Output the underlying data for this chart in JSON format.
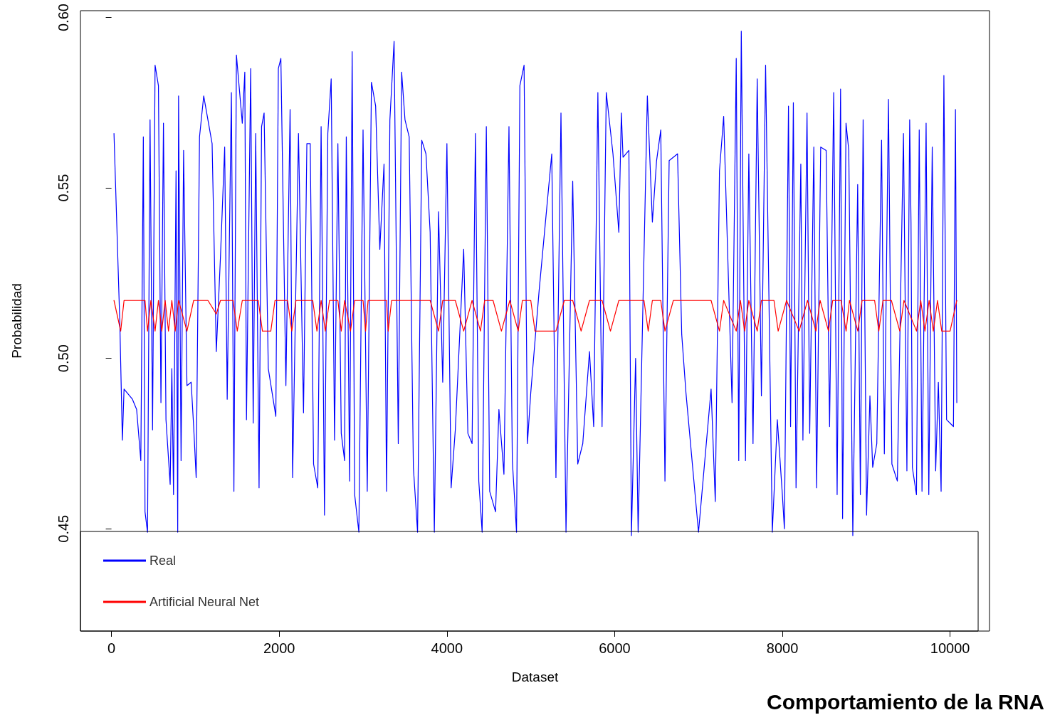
{
  "chart_data": {
    "type": "line",
    "title": "Comportamiento de la RNA",
    "xlabel": "Dataset",
    "ylabel": "Probabilidad",
    "xlim": [
      -370,
      10470
    ],
    "xticks": [
      0,
      2000,
      4000,
      6000,
      8000,
      10000
    ],
    "ylim": [
      0.42,
      0.602
    ],
    "yticks": [
      {
        "value": 0.45,
        "label": "0.45"
      },
      {
        "value": 0.5,
        "label": "0.50"
      },
      {
        "value": 0.55,
        "label": "0.55"
      },
      {
        "value": 0.6,
        "label": "0.60"
      }
    ],
    "grid": false,
    "legend": "bottom left",
    "marker": "none",
    "line_style": "solid",
    "series": [
      {
        "name": "Real",
        "color": "#0000ff",
        "x": [
          30,
          100,
          130,
          150,
          250,
          300,
          350,
          380,
          400,
          430,
          460,
          490,
          520,
          560,
          590,
          620,
          650,
          700,
          720,
          740,
          770,
          790,
          800,
          830,
          860,
          900,
          950,
          980,
          1010,
          1050,
          1100,
          1200,
          1250,
          1300,
          1350,
          1380,
          1430,
          1460,
          1490,
          1560,
          1590,
          1610,
          1660,
          1690,
          1720,
          1760,
          1790,
          1820,
          1870,
          1960,
          1990,
          2020,
          2080,
          2130,
          2160,
          2230,
          2290,
          2330,
          2370,
          2410,
          2460,
          2500,
          2540,
          2580,
          2620,
          2660,
          2700,
          2740,
          2780,
          2800,
          2840,
          2870,
          2900,
          2950,
          3000,
          3050,
          3100,
          3150,
          3200,
          3250,
          3280,
          3320,
          3370,
          3420,
          3460,
          3500,
          3550,
          3600,
          3650,
          3700,
          3750,
          3800,
          3850,
          3900,
          3950,
          4000,
          4050,
          4100,
          4200,
          4250,
          4300,
          4340,
          4380,
          4420,
          4470,
          4510,
          4580,
          4620,
          4680,
          4740,
          4780,
          4830,
          4870,
          4920,
          4960,
          5000,
          5100,
          5250,
          5300,
          5360,
          5420,
          5500,
          5560,
          5620,
          5700,
          5750,
          5800,
          5850,
          5900,
          5980,
          6050,
          6080,
          6100,
          6170,
          6200,
          6250,
          6280,
          6390,
          6450,
          6500,
          6550,
          6600,
          6650,
          6750,
          6800,
          6850,
          7000,
          7150,
          7200,
          7250,
          7300,
          7400,
          7450,
          7480,
          7510,
          7560,
          7600,
          7650,
          7700,
          7750,
          7800,
          7880,
          7940,
          8000,
          8024,
          8073,
          8098,
          8131,
          8163,
          8220,
          8245,
          8294,
          8326,
          8375,
          8408,
          8457,
          8522,
          8563,
          8612,
          8653,
          8694,
          8718,
          8759,
          8792,
          8840,
          8898,
          8930,
          8963,
          9004,
          9044,
          9077,
          9126,
          9183,
          9216,
          9265,
          9306,
          9371,
          9444,
          9485,
          9518,
          9534,
          9550,
          9599,
          9632,
          9665,
          9714,
          9746,
          9787,
          9828,
          9860,
          9893,
          9926,
          9958,
          10040,
          10064,
          10080
        ],
        "values": [
          0.566,
          0.51,
          0.476,
          0.491,
          0.488,
          0.485,
          0.47,
          0.565,
          0.455,
          0.449,
          0.57,
          0.479,
          0.586,
          0.58,
          0.487,
          0.569,
          0.482,
          0.463,
          0.497,
          0.46,
          0.555,
          0.449,
          0.577,
          0.47,
          0.561,
          0.492,
          0.493,
          0.48,
          0.465,
          0.565,
          0.577,
          0.563,
          0.502,
          0.53,
          0.562,
          0.488,
          0.578,
          0.461,
          0.589,
          0.569,
          0.584,
          0.482,
          0.585,
          0.481,
          0.566,
          0.462,
          0.568,
          0.572,
          0.497,
          0.483,
          0.585,
          0.588,
          0.492,
          0.573,
          0.465,
          0.566,
          0.484,
          0.563,
          0.563,
          0.469,
          0.462,
          0.568,
          0.454,
          0.566,
          0.582,
          0.476,
          0.563,
          0.478,
          0.47,
          0.565,
          0.464,
          0.59,
          0.46,
          0.449,
          0.567,
          0.461,
          0.581,
          0.574,
          0.532,
          0.557,
          0.461,
          0.57,
          0.593,
          0.475,
          0.584,
          0.57,
          0.565,
          0.468,
          0.449,
          0.564,
          0.56,
          0.537,
          0.449,
          0.543,
          0.493,
          0.563,
          0.462,
          0.479,
          0.532,
          0.478,
          0.475,
          0.566,
          0.464,
          0.449,
          0.568,
          0.461,
          0.455,
          0.485,
          0.466,
          0.568,
          0.47,
          0.449,
          0.58,
          0.586,
          0.475,
          0.49,
          0.52,
          0.56,
          0.465,
          0.572,
          0.449,
          0.552,
          0.469,
          0.475,
          0.502,
          0.48,
          0.578,
          0.48,
          0.578,
          0.56,
          0.537,
          0.572,
          0.559,
          0.561,
          0.448,
          0.5,
          0.449,
          0.577,
          0.54,
          0.558,
          0.567,
          0.464,
          0.558,
          0.56,
          0.507,
          0.49,
          0.449,
          0.491,
          0.458,
          0.555,
          0.571,
          0.487,
          0.588,
          0.47,
          0.596,
          0.47,
          0.56,
          0.475,
          0.582,
          0.489,
          0.586,
          0.449,
          0.482,
          0.46,
          0.45,
          0.574,
          0.48,
          0.575,
          0.462,
          0.557,
          0.476,
          0.572,
          0.478,
          0.562,
          0.462,
          0.562,
          0.561,
          0.48,
          0.578,
          0.46,
          0.579,
          0.453,
          0.569,
          0.561,
          0.448,
          0.551,
          0.46,
          0.57,
          0.454,
          0.489,
          0.468,
          0.475,
          0.564,
          0.472,
          0.576,
          0.469,
          0.464,
          0.566,
          0.467,
          0.57,
          0.54,
          0.468,
          0.46,
          0.567,
          0.461,
          0.569,
          0.46,
          0.562,
          0.467,
          0.493,
          0.461,
          0.583,
          0.482,
          0.48,
          0.573,
          0.487
        ]
      },
      {
        "name": "Artificial Neural Net",
        "color": "#ff0000",
        "x": [
          30,
          110,
          150,
          400,
          430,
          470,
          520,
          560,
          600,
          640,
          680,
          720,
          760,
          800,
          900,
          980,
          1150,
          1250,
          1300,
          1450,
          1500,
          1560,
          1750,
          1800,
          1900,
          1950,
          2100,
          2150,
          2200,
          2400,
          2450,
          2500,
          2550,
          2600,
          2700,
          2740,
          2780,
          2850,
          2900,
          3000,
          3030,
          3060,
          3280,
          3300,
          3340,
          3800,
          3900,
          3950,
          4100,
          4200,
          4300,
          4400,
          4450,
          4550,
          4650,
          4750,
          4850,
          4900,
          5000,
          5050,
          5300,
          5400,
          5500,
          5600,
          5700,
          5850,
          5950,
          6050,
          6350,
          6400,
          6450,
          6550,
          6600,
          6700,
          7150,
          7250,
          7300,
          7450,
          7500,
          7550,
          7600,
          7700,
          7750,
          7900,
          7950,
          8050,
          8200,
          8300,
          8400,
          8450,
          8550,
          8600,
          8700,
          8760,
          8800,
          8900,
          8950,
          9100,
          9150,
          9200,
          9300,
          9400,
          9450,
          9600,
          9650,
          9700,
          9750,
          9800,
          9850,
          9900,
          10000,
          10080
        ],
        "values": [
          0.517,
          0.508,
          0.517,
          0.517,
          0.508,
          0.517,
          0.508,
          0.517,
          0.508,
          0.517,
          0.508,
          0.517,
          0.508,
          0.517,
          0.508,
          0.517,
          0.517,
          0.513,
          0.517,
          0.517,
          0.508,
          0.517,
          0.517,
          0.508,
          0.508,
          0.517,
          0.517,
          0.508,
          0.517,
          0.517,
          0.508,
          0.517,
          0.508,
          0.517,
          0.517,
          0.508,
          0.517,
          0.508,
          0.517,
          0.517,
          0.508,
          0.517,
          0.517,
          0.508,
          0.517,
          0.517,
          0.508,
          0.517,
          0.517,
          0.508,
          0.517,
          0.508,
          0.517,
          0.517,
          0.508,
          0.517,
          0.508,
          0.517,
          0.517,
          0.508,
          0.508,
          0.517,
          0.517,
          0.508,
          0.517,
          0.517,
          0.508,
          0.517,
          0.517,
          0.508,
          0.517,
          0.517,
          0.508,
          0.517,
          0.517,
          0.508,
          0.517,
          0.508,
          0.517,
          0.508,
          0.517,
          0.508,
          0.517,
          0.517,
          0.508,
          0.517,
          0.508,
          0.517,
          0.508,
          0.517,
          0.508,
          0.517,
          0.517,
          0.508,
          0.517,
          0.508,
          0.517,
          0.517,
          0.508,
          0.517,
          0.517,
          0.508,
          0.517,
          0.508,
          0.517,
          0.508,
          0.517,
          0.508,
          0.517,
          0.508,
          0.508,
          0.517
        ]
      }
    ]
  }
}
